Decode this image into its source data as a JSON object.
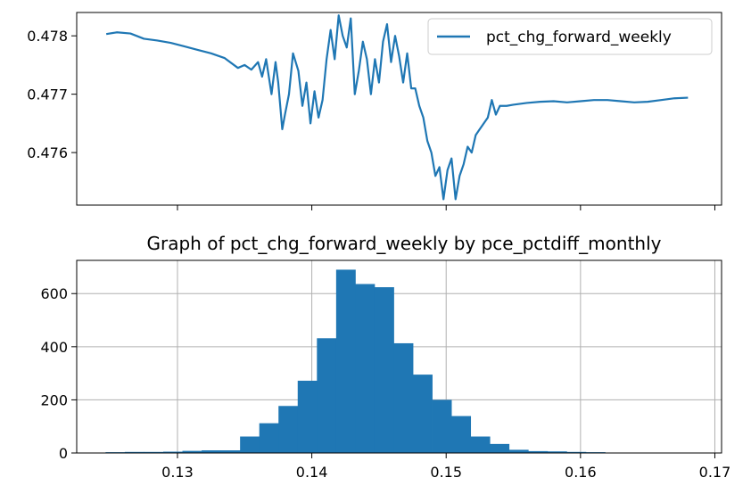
{
  "chart_data": [
    {
      "type": "line",
      "title": "",
      "xlabel": "",
      "ylabel": "",
      "legend": {
        "position": "top-right",
        "entries": [
          "pct_chg_forward_weekly"
        ]
      },
      "grid": false,
      "ylim": [
        0.4751,
        0.4784
      ],
      "yticks": [
        0.476,
        0.477,
        0.478
      ],
      "ytick_labels": [
        "0.476",
        "0.477",
        "0.478"
      ],
      "xlim": [
        0.1225,
        0.1705
      ],
      "xticks": [
        0.13,
        0.14,
        0.15,
        0.16,
        0.17
      ],
      "xtick_labels_visible": false,
      "series": [
        {
          "name": "pct_chg_forward_weekly",
          "color": "#1f77b4",
          "x": [
            0.1247,
            0.1255,
            0.1265,
            0.1275,
            0.1285,
            0.1295,
            0.1305,
            0.1315,
            0.1325,
            0.1335,
            0.1345,
            0.135,
            0.1355,
            0.136,
            0.1363,
            0.1366,
            0.137,
            0.1373,
            0.1375,
            0.1378,
            0.138,
            0.1383,
            0.1386,
            0.139,
            0.1393,
            0.1396,
            0.1399,
            0.1402,
            0.1405,
            0.1408,
            0.1411,
            0.1414,
            0.1417,
            0.142,
            0.1423,
            0.1426,
            0.1429,
            0.1432,
            0.1435,
            0.1438,
            0.1441,
            0.1444,
            0.1447,
            0.145,
            0.1453,
            0.1456,
            0.1459,
            0.1462,
            0.1465,
            0.1468,
            0.1471,
            0.1474,
            0.1477,
            0.148,
            0.1483,
            0.1486,
            0.1489,
            0.1492,
            0.1495,
            0.1498,
            0.1501,
            0.1504,
            0.1507,
            0.151,
            0.1513,
            0.1516,
            0.1519,
            0.1522,
            0.1525,
            0.1528,
            0.1531,
            0.1534,
            0.1537,
            0.154,
            0.1545,
            0.155,
            0.156,
            0.157,
            0.158,
            0.159,
            0.16,
            0.161,
            0.162,
            0.163,
            0.164,
            0.165,
            0.166,
            0.167,
            0.168
          ],
          "y": [
            0.47803,
            0.47806,
            0.47804,
            0.47795,
            0.47792,
            0.47788,
            0.47782,
            0.47776,
            0.4777,
            0.47762,
            0.47745,
            0.4775,
            0.47742,
            0.47755,
            0.4773,
            0.4776,
            0.477,
            0.47755,
            0.4772,
            0.4764,
            0.47665,
            0.477,
            0.4777,
            0.4774,
            0.4768,
            0.4772,
            0.4765,
            0.47705,
            0.4766,
            0.4769,
            0.4776,
            0.4781,
            0.4776,
            0.47835,
            0.478,
            0.4778,
            0.4783,
            0.477,
            0.4774,
            0.4779,
            0.4776,
            0.477,
            0.4776,
            0.4772,
            0.4779,
            0.4782,
            0.47755,
            0.478,
            0.47765,
            0.4772,
            0.4777,
            0.4771,
            0.4771,
            0.4768,
            0.4766,
            0.4762,
            0.476,
            0.4756,
            0.47575,
            0.4752,
            0.4757,
            0.4759,
            0.4752,
            0.4756,
            0.4758,
            0.4761,
            0.476,
            0.4763,
            0.4764,
            0.4765,
            0.4766,
            0.4769,
            0.47665,
            0.4768,
            0.4768,
            0.47682,
            0.47685,
            0.47687,
            0.47688,
            0.47686,
            0.47688,
            0.4769,
            0.4769,
            0.47688,
            0.47686,
            0.47687,
            0.4769,
            0.47693,
            0.47694
          ]
        }
      ]
    },
    {
      "type": "bar",
      "title": "Graph of pct_chg_forward_weekly by pce_pctdiff_monthly",
      "xlabel": "",
      "ylabel": "",
      "grid": true,
      "xlim": [
        0.1225,
        0.1705
      ],
      "xticks": [
        0.13,
        0.14,
        0.15,
        0.16,
        0.17
      ],
      "xtick_labels": [
        "0.13",
        "0.14",
        "0.15",
        "0.16",
        "0.17"
      ],
      "ylim": [
        0,
        725
      ],
      "yticks": [
        0,
        200,
        400,
        600
      ],
      "ytick_labels": [
        "0",
        "200",
        "400",
        "600"
      ],
      "color": "#1f77b4",
      "bin_edges": [
        0.12465,
        0.12608,
        0.12751,
        0.12894,
        0.13037,
        0.1318,
        0.13323,
        0.13466,
        0.13609,
        0.13752,
        0.13895,
        0.14038,
        0.14181,
        0.14324,
        0.14467,
        0.1461,
        0.14753,
        0.14896,
        0.15039,
        0.15182,
        0.15325,
        0.15468,
        0.15611,
        0.15754,
        0.15897,
        0.1604,
        0.16183,
        0.16326,
        0.16469,
        0.16612,
        0.16755
      ],
      "values": [
        3,
        4,
        4,
        5,
        8,
        10,
        10,
        62,
        112,
        177,
        272,
        432,
        690,
        636,
        624,
        413,
        295,
        200,
        139,
        62,
        34,
        12,
        7,
        6,
        4,
        3,
        1,
        1,
        1,
        1
      ]
    }
  ]
}
